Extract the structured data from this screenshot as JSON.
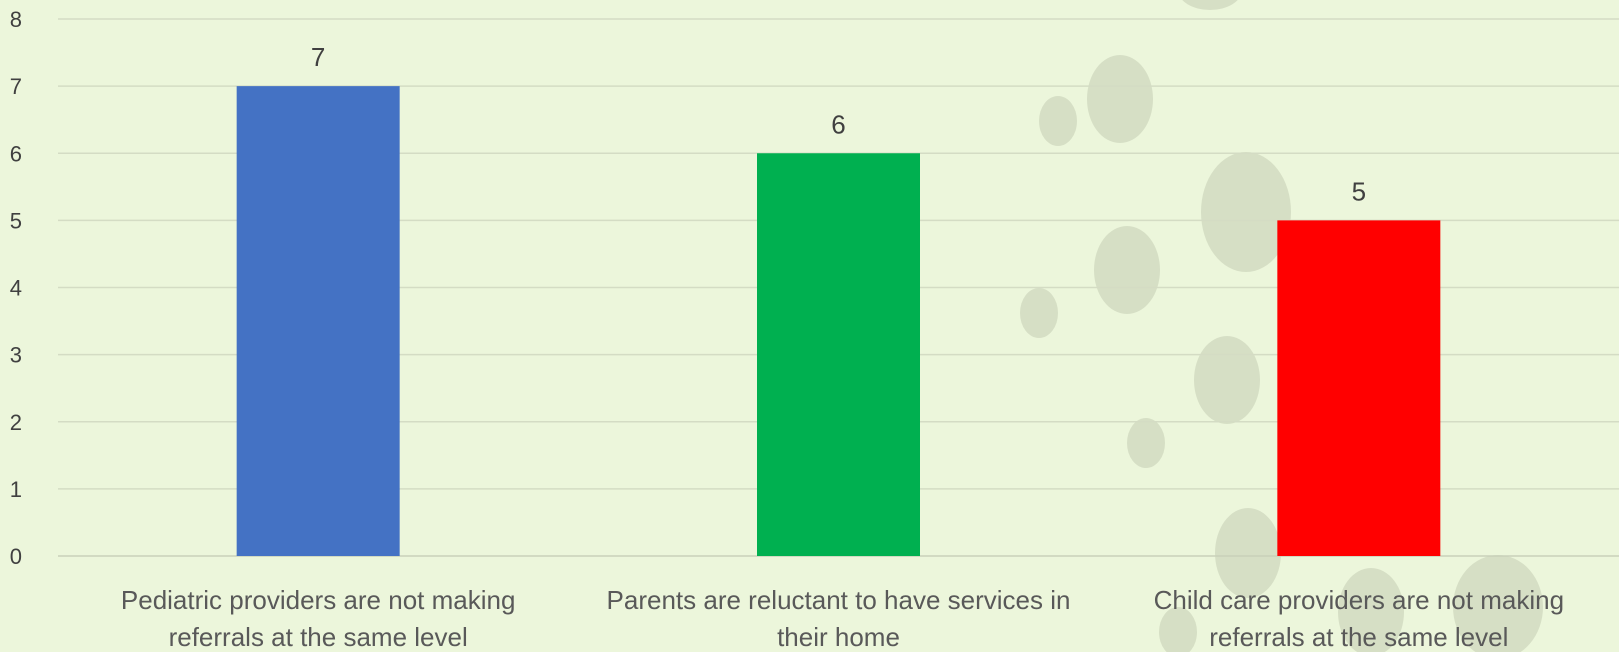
{
  "chart_data": {
    "type": "bar",
    "categories": [
      "Pediatric providers are not making referrals at the same level",
      "Parents are reluctant to have services in their home",
      "Child care providers are not making referrals at the same level"
    ],
    "category_lines": [
      [
        "Pediatric providers are not making",
        "referrals at the same level"
      ],
      [
        "Parents are reluctant to have services in",
        "their home"
      ],
      [
        "Child care providers are not making",
        "referrals at the same level"
      ]
    ],
    "values": [
      7,
      6,
      5
    ],
    "data_labels": [
      "7",
      "6",
      "5"
    ],
    "bar_colors": [
      "#4472c4",
      "#00b050",
      "#ff0000"
    ],
    "ylim": [
      0,
      8
    ],
    "yticks": [
      0,
      1,
      2,
      3,
      4,
      5,
      6,
      7,
      8
    ],
    "grid": true,
    "legend": "none",
    "title": "",
    "xlabel": "",
    "ylabel": ""
  },
  "colors": {
    "background": "#ecf6db",
    "gridline": "#d4dcc4",
    "decoration": "#d6dfc5",
    "text": "#404040"
  }
}
